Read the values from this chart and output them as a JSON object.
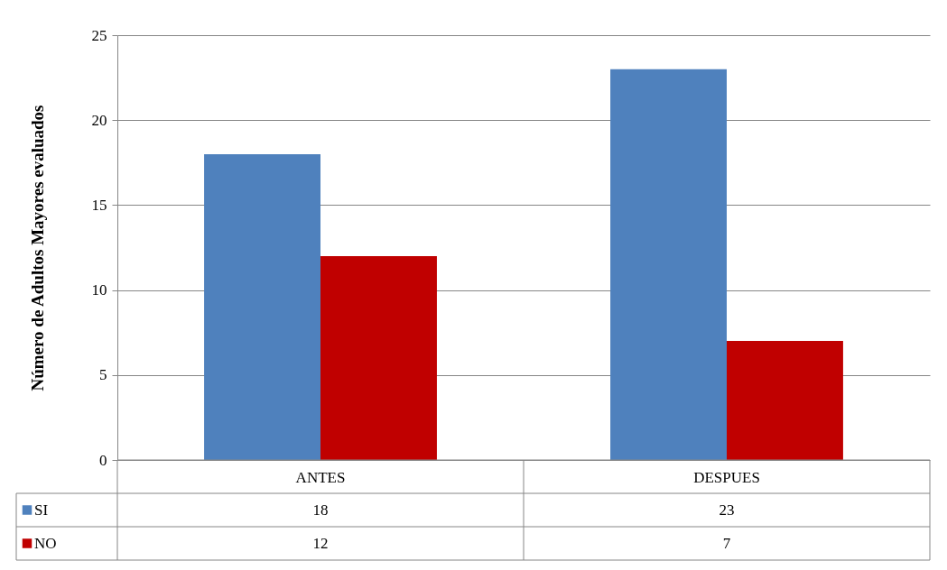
{
  "chart_data": {
    "type": "bar",
    "ylabel": "Número de Adultos Mayores evaluados",
    "categories": [
      "ANTES",
      "DESPUES"
    ],
    "series": [
      {
        "name": "SI",
        "color": "#4f81bd",
        "values": [
          18,
          23
        ]
      },
      {
        "name": "NO",
        "color": "#c00000",
        "values": [
          12,
          7
        ]
      }
    ],
    "ylim": [
      0,
      25
    ],
    "yticks": [
      0,
      5,
      10,
      15,
      20,
      25
    ],
    "grid": "y",
    "legend": "bottom",
    "data_labels": true
  }
}
